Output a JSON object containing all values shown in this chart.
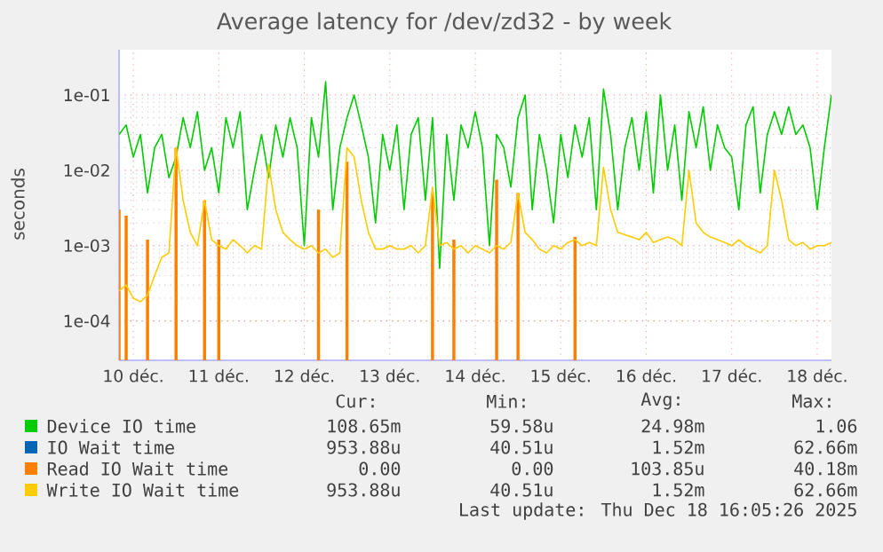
{
  "chart_data": {
    "type": "line",
    "title": "Average latency for /dev/zd32 - by week",
    "ylabel": "seconds",
    "log": "y",
    "grid": true,
    "legend": "bottom",
    "line_style": "solid",
    "xlim": [
      "2025-12-10T08:00",
      "2025-12-18T16:00"
    ],
    "xticks": [
      {
        "value": "2025-12-10T12:00",
        "label": "10 déc."
      },
      {
        "value": "2025-12-11T12:00",
        "label": "11 déc."
      },
      {
        "value": "2025-12-12T12:00",
        "label": "12 déc."
      },
      {
        "value": "2025-12-13T12:00",
        "label": "13 déc."
      },
      {
        "value": "2025-12-14T12:00",
        "label": "14 déc."
      },
      {
        "value": "2025-12-15T12:00",
        "label": "15 déc."
      },
      {
        "value": "2025-12-16T12:00",
        "label": "16 déc."
      },
      {
        "value": "2025-12-17T12:00",
        "label": "17 déc."
      },
      {
        "value": "2025-12-18T12:00",
        "label": "18 déc."
      }
    ],
    "ylim": [
      3e-05,
      0.4
    ],
    "yticks": [
      {
        "value": 0.0001,
        "label": "1e-04"
      },
      {
        "value": 0.001,
        "label": "1e-03"
      },
      {
        "value": 0.01,
        "label": "1e-02"
      },
      {
        "value": 0.1,
        "label": "1e-01"
      }
    ],
    "x": [
      "2025-12-10T08:00",
      "2025-12-10T10:00",
      "2025-12-10T12:00",
      "2025-12-10T14:00",
      "2025-12-10T16:00",
      "2025-12-10T18:00",
      "2025-12-10T20:00",
      "2025-12-10T22:00",
      "2025-12-11T00:00",
      "2025-12-11T02:00",
      "2025-12-11T04:00",
      "2025-12-11T06:00",
      "2025-12-11T08:00",
      "2025-12-11T10:00",
      "2025-12-11T12:00",
      "2025-12-11T14:00",
      "2025-12-11T16:00",
      "2025-12-11T18:00",
      "2025-12-11T20:00",
      "2025-12-11T22:00",
      "2025-12-12T00:00",
      "2025-12-12T02:00",
      "2025-12-12T04:00",
      "2025-12-12T06:00",
      "2025-12-12T08:00",
      "2025-12-12T10:00",
      "2025-12-12T12:00",
      "2025-12-12T14:00",
      "2025-12-12T16:00",
      "2025-12-12T18:00",
      "2025-12-12T20:00",
      "2025-12-12T22:00",
      "2025-12-13T00:00",
      "2025-12-13T02:00",
      "2025-12-13T04:00",
      "2025-12-13T06:00",
      "2025-12-13T08:00",
      "2025-12-13T10:00",
      "2025-12-13T12:00",
      "2025-12-13T14:00",
      "2025-12-13T16:00",
      "2025-12-13T18:00",
      "2025-12-13T20:00",
      "2025-12-13T22:00",
      "2025-12-14T00:00",
      "2025-12-14T02:00",
      "2025-12-14T04:00",
      "2025-12-14T06:00",
      "2025-12-14T08:00",
      "2025-12-14T10:00",
      "2025-12-14T12:00",
      "2025-12-14T14:00",
      "2025-12-14T16:00",
      "2025-12-14T18:00",
      "2025-12-14T20:00",
      "2025-12-14T22:00",
      "2025-12-15T00:00",
      "2025-12-15T02:00",
      "2025-12-15T04:00",
      "2025-12-15T06:00",
      "2025-12-15T08:00",
      "2025-12-15T10:00",
      "2025-12-15T12:00",
      "2025-12-15T14:00",
      "2025-12-15T16:00",
      "2025-12-15T18:00",
      "2025-12-15T20:00",
      "2025-12-15T22:00",
      "2025-12-16T00:00",
      "2025-12-16T02:00",
      "2025-12-16T04:00",
      "2025-12-16T06:00",
      "2025-12-16T08:00",
      "2025-12-16T10:00",
      "2025-12-16T12:00",
      "2025-12-16T14:00",
      "2025-12-16T16:00",
      "2025-12-16T18:00",
      "2025-12-16T20:00",
      "2025-12-16T22:00",
      "2025-12-17T00:00",
      "2025-12-17T02:00",
      "2025-12-17T04:00",
      "2025-12-17T06:00",
      "2025-12-17T08:00",
      "2025-12-17T10:00",
      "2025-12-17T12:00",
      "2025-12-17T14:00",
      "2025-12-17T16:00",
      "2025-12-17T18:00",
      "2025-12-17T20:00",
      "2025-12-17T22:00",
      "2025-12-18T00:00",
      "2025-12-18T02:00",
      "2025-12-18T04:00",
      "2025-12-18T06:00",
      "2025-12-18T08:00",
      "2025-12-18T10:00",
      "2025-12-18T12:00",
      "2025-12-18T14:00",
      "2025-12-18T16:00"
    ],
    "series": [
      {
        "name": "Device IO time",
        "color": "#00cc00",
        "values": [
          0.03,
          0.04,
          0.015,
          0.03,
          0.005,
          0.02,
          0.03,
          0.008,
          0.015,
          0.05,
          0.02,
          0.06,
          0.01,
          0.02,
          0.005,
          0.05,
          0.02,
          0.06,
          0.003,
          0.01,
          0.03,
          0.008,
          0.04,
          0.015,
          0.05,
          0.02,
          0.001,
          0.05,
          0.015,
          0.15,
          0.003,
          0.02,
          0.05,
          0.1,
          0.04,
          0.015,
          0.002,
          0.03,
          0.01,
          0.04,
          0.003,
          0.03,
          0.05,
          0.004,
          0.05,
          0.0005,
          0.03,
          0.004,
          0.04,
          0.02,
          0.06,
          0.02,
          0.001,
          0.03,
          0.02,
          0.006,
          0.05,
          0.1,
          0.003,
          0.03,
          0.01,
          0.002,
          0.03,
          0.008,
          0.04,
          0.015,
          0.05,
          0.003,
          0.12,
          0.03,
          0.003,
          0.02,
          0.05,
          0.01,
          0.06,
          0.005,
          0.1,
          0.01,
          0.04,
          0.004,
          0.06,
          0.02,
          0.07,
          0.01,
          0.04,
          0.02,
          0.015,
          0.003,
          0.04,
          0.07,
          0.005,
          0.03,
          0.06,
          0.03,
          0.07,
          0.03,
          0.04,
          0.02,
          0.003,
          0.02,
          0.1
        ]
      },
      {
        "name": "IO Wait time",
        "color": "#0066b3",
        "values": [
          null,
          null,
          null,
          null,
          null,
          null,
          null,
          null,
          null,
          null,
          null,
          null,
          null,
          null,
          null,
          null,
          null,
          null,
          null,
          null,
          null,
          null,
          null,
          null,
          null,
          null,
          null,
          null,
          null,
          null,
          null,
          null,
          null,
          null,
          null,
          null,
          null,
          null,
          null,
          null,
          null,
          null,
          null,
          null,
          null,
          null,
          null,
          null,
          null,
          null,
          null,
          null,
          null,
          null,
          null,
          null,
          null,
          null,
          null,
          null,
          null,
          null,
          null,
          null,
          null,
          null,
          null,
          null,
          null,
          null,
          null,
          null,
          null,
          null,
          null,
          null,
          null,
          null,
          null,
          null,
          null,
          null,
          null,
          null,
          null,
          null,
          null,
          null,
          null,
          null,
          null,
          null,
          null,
          null,
          null,
          null,
          null,
          null,
          null,
          null,
          null
        ]
      },
      {
        "name": "Read IO Wait time",
        "color": "#ff8000",
        "type": "bar",
        "values": [
          0.003,
          0.0025,
          null,
          null,
          0.0012,
          null,
          null,
          null,
          0.02,
          null,
          null,
          null,
          0.004,
          null,
          0.0012,
          null,
          null,
          null,
          null,
          null,
          null,
          null,
          null,
          null,
          null,
          null,
          null,
          null,
          0.003,
          null,
          null,
          null,
          0.013,
          null,
          null,
          null,
          null,
          null,
          null,
          null,
          null,
          null,
          null,
          null,
          0.005,
          null,
          null,
          0.0012,
          null,
          null,
          null,
          null,
          null,
          0.0075,
          null,
          null,
          0.005,
          null,
          null,
          null,
          null,
          null,
          null,
          null,
          0.0013,
          null,
          null,
          null,
          null,
          null,
          null,
          null,
          null,
          null,
          null,
          null,
          null,
          null,
          null,
          null,
          null,
          null,
          null,
          null,
          null,
          null,
          null,
          null,
          null,
          null,
          null,
          null,
          null,
          null,
          null,
          null,
          null,
          null,
          null,
          null,
          null
        ]
      },
      {
        "name": "Write IO Wait time",
        "color": "#ffcc00",
        "values": [
          0.00025,
          0.0003,
          0.0002,
          0.00018,
          0.00022,
          0.0004,
          0.0007,
          0.0008,
          0.02,
          0.004,
          0.0015,
          0.001,
          0.004,
          0.0012,
          0.001,
          0.0009,
          0.0012,
          0.001,
          0.0008,
          0.001,
          0.0009,
          0.012,
          0.003,
          0.0015,
          0.0012,
          0.001,
          0.0009,
          0.001,
          0.0008,
          0.0009,
          0.0007,
          0.0008,
          0.02,
          0.015,
          0.004,
          0.0015,
          0.0009,
          0.0009,
          0.001,
          0.0009,
          0.0009,
          0.001,
          0.0008,
          0.001,
          0.006,
          0.001,
          0.0011,
          0.0009,
          0.001,
          0.0008,
          0.001,
          0.0009,
          0.0008,
          0.001,
          0.0009,
          0.0011,
          0.005,
          0.0015,
          0.0012,
          0.0009,
          0.0008,
          0.001,
          0.0009,
          0.0011,
          0.0012,
          0.001,
          0.0011,
          0.001,
          0.011,
          0.003,
          0.0015,
          0.0014,
          0.0013,
          0.0012,
          0.0015,
          0.0011,
          0.0012,
          0.0013,
          0.0012,
          0.001,
          0.01,
          0.002,
          0.0015,
          0.0013,
          0.0012,
          0.0011,
          0.001,
          0.0012,
          0.001,
          0.0009,
          0.0008,
          0.001,
          0.01,
          0.004,
          0.0012,
          0.001,
          0.0011,
          0.0009,
          0.001,
          0.001,
          0.0011
        ]
      }
    ],
    "annotations": [
      "Cur:",
      "Min:",
      "Avg:",
      "Max:",
      "108.65m",
      "59.58u",
      "24.98m",
      "1.06",
      "953.88u",
      "40.51u",
      "1.52m",
      "62.66m",
      "0.00",
      "0.00",
      "103.85u",
      "40.18m",
      "953.88u",
      "40.51u",
      "1.52m",
      "62.66m",
      "Last update: Thu Dec 18 16:05:26 2025"
    ]
  }
}
